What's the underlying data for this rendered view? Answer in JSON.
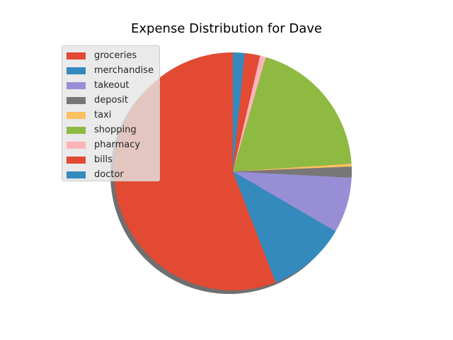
{
  "chart_data": {
    "type": "pie",
    "title": "Expense Distribution for Dave",
    "slices": [
      {
        "label": "groceries",
        "value": 56.2,
        "color": "#E24A33"
      },
      {
        "label": "merchandise",
        "value": 10.8,
        "color": "#348ABD"
      },
      {
        "label": "takeout",
        "value": 7.6,
        "color": "#988ED5"
      },
      {
        "label": "deposit",
        "value": 1.5,
        "color": "#777777"
      },
      {
        "label": "taxi",
        "value": 0.4,
        "color": "#FBC15E"
      },
      {
        "label": "shopping",
        "value": 19.6,
        "color": "#8EBA42"
      },
      {
        "label": "pharmacy",
        "value": 0.8,
        "color": "#FFB5B8"
      },
      {
        "label": "bills",
        "value": 2.1,
        "color": "#E24A33"
      },
      {
        "label": "doctor",
        "value": 1.6,
        "color": "#348ABD"
      }
    ],
    "start_angle_deg": 90,
    "direction": "counterclockwise",
    "shadow": true,
    "legend_position": "upper-left"
  }
}
